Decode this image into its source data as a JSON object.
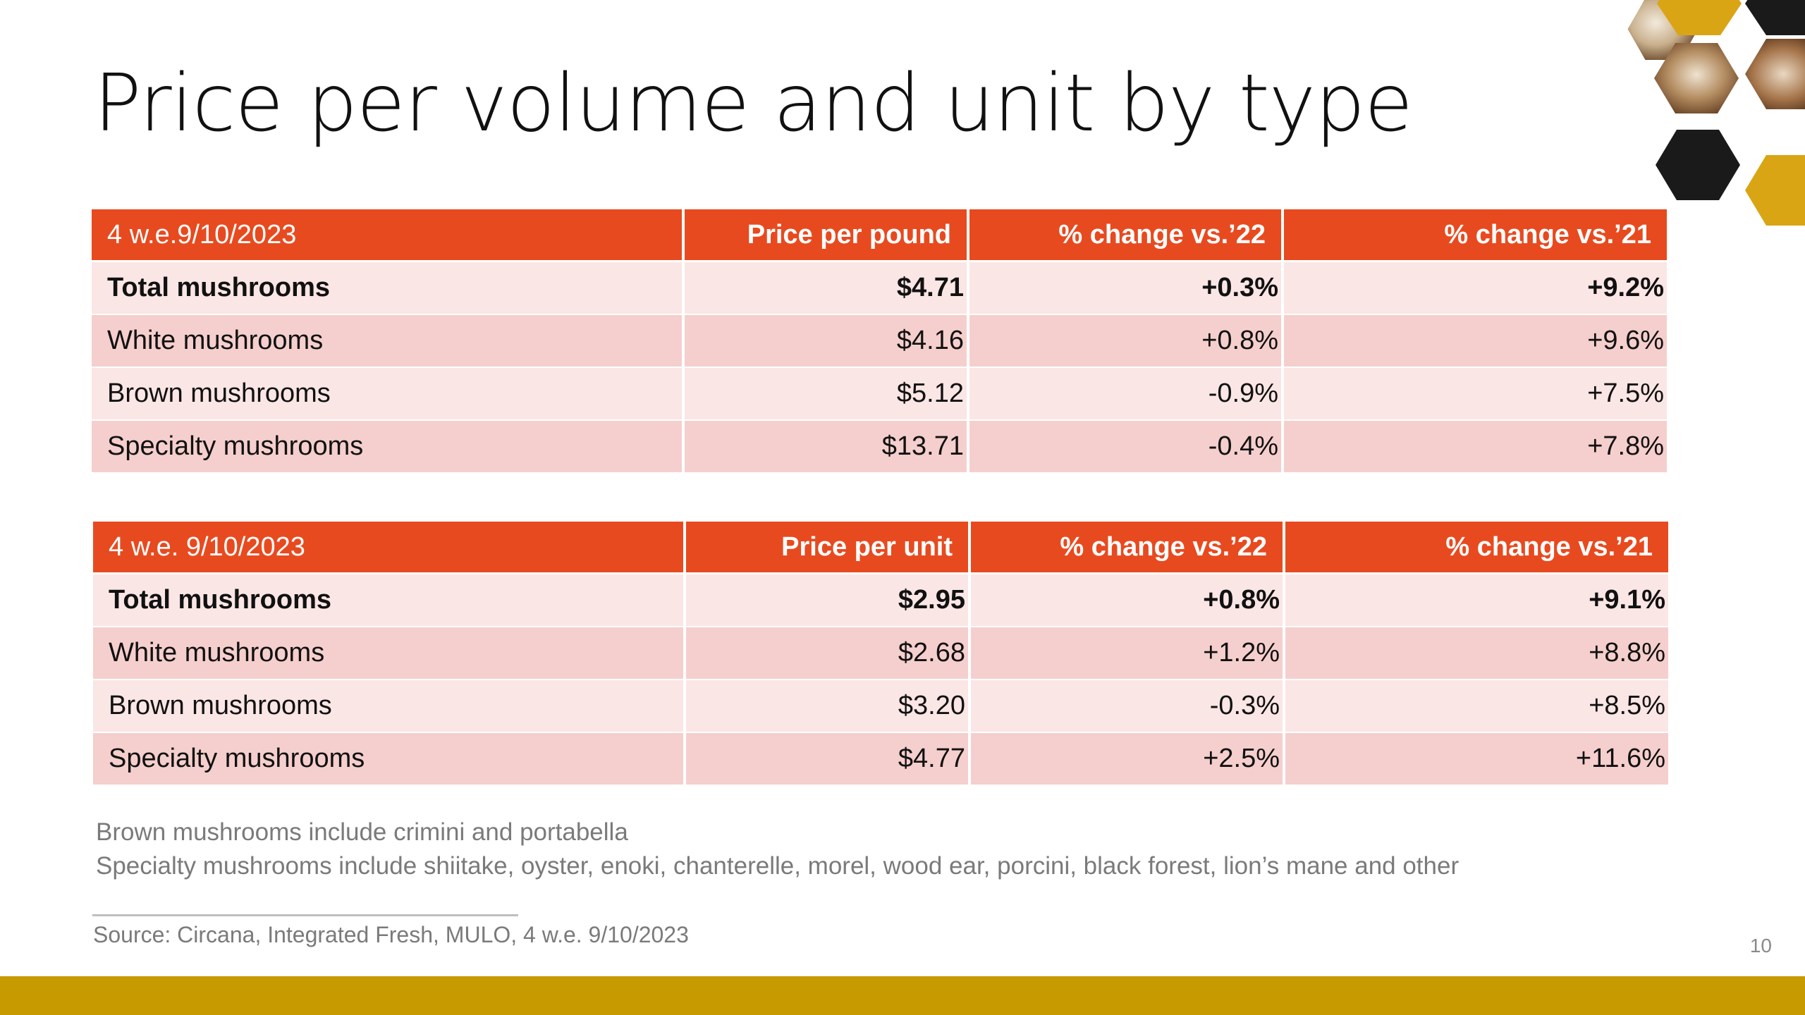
{
  "title": "Price per volume and unit by type",
  "table_volume": {
    "headers": [
      "4 w.e.9/10/2023",
      "Price per pound",
      "% change vs.’22",
      "% change vs.’21"
    ],
    "rows": [
      [
        "Total mushrooms",
        "$4.71",
        "+0.3%",
        "+9.2%"
      ],
      [
        "White mushrooms",
        "$4.16",
        "+0.8%",
        "+9.6%"
      ],
      [
        "Brown mushrooms",
        "$5.12",
        "-0.9%",
        "+7.5%"
      ],
      [
        "Specialty mushrooms",
        "$13.71",
        "-0.4%",
        "+7.8%"
      ]
    ]
  },
  "table_unit": {
    "headers": [
      "4 w.e. 9/10/2023",
      "Price per unit",
      "% change vs.’22",
      "% change vs.’21"
    ],
    "rows": [
      [
        "Total mushrooms",
        "$2.95",
        "+0.8%",
        "+9.1%"
      ],
      [
        "White mushrooms",
        "$2.68",
        "+1.2%",
        "+8.8%"
      ],
      [
        "Brown mushrooms",
        "$3.20",
        "-0.3%",
        "+8.5%"
      ],
      [
        "Specialty mushrooms",
        "$4.77",
        "+2.5%",
        "+11.6%"
      ]
    ]
  },
  "notes": [
    "Brown mushrooms include crimini and portabella",
    "Specialty mushrooms include shiitake, oyster, enoki, chanterelle, morel, wood ear, porcini, black forest, lion’s mane and other"
  ],
  "source": "Source: Circana, Integrated Fresh, MULO, 4 w.e. 9/10/2023",
  "page_number": "10",
  "colors": {
    "header": "#e84a1f",
    "row_light": "#fae6e5",
    "row_dark": "#f5cfcd",
    "footer_bar": "#c79a00",
    "hex_gold": "#d9a514",
    "hex_black": "#1a1a1a"
  },
  "decoration": "hexagon-mushroom-photo-cluster"
}
